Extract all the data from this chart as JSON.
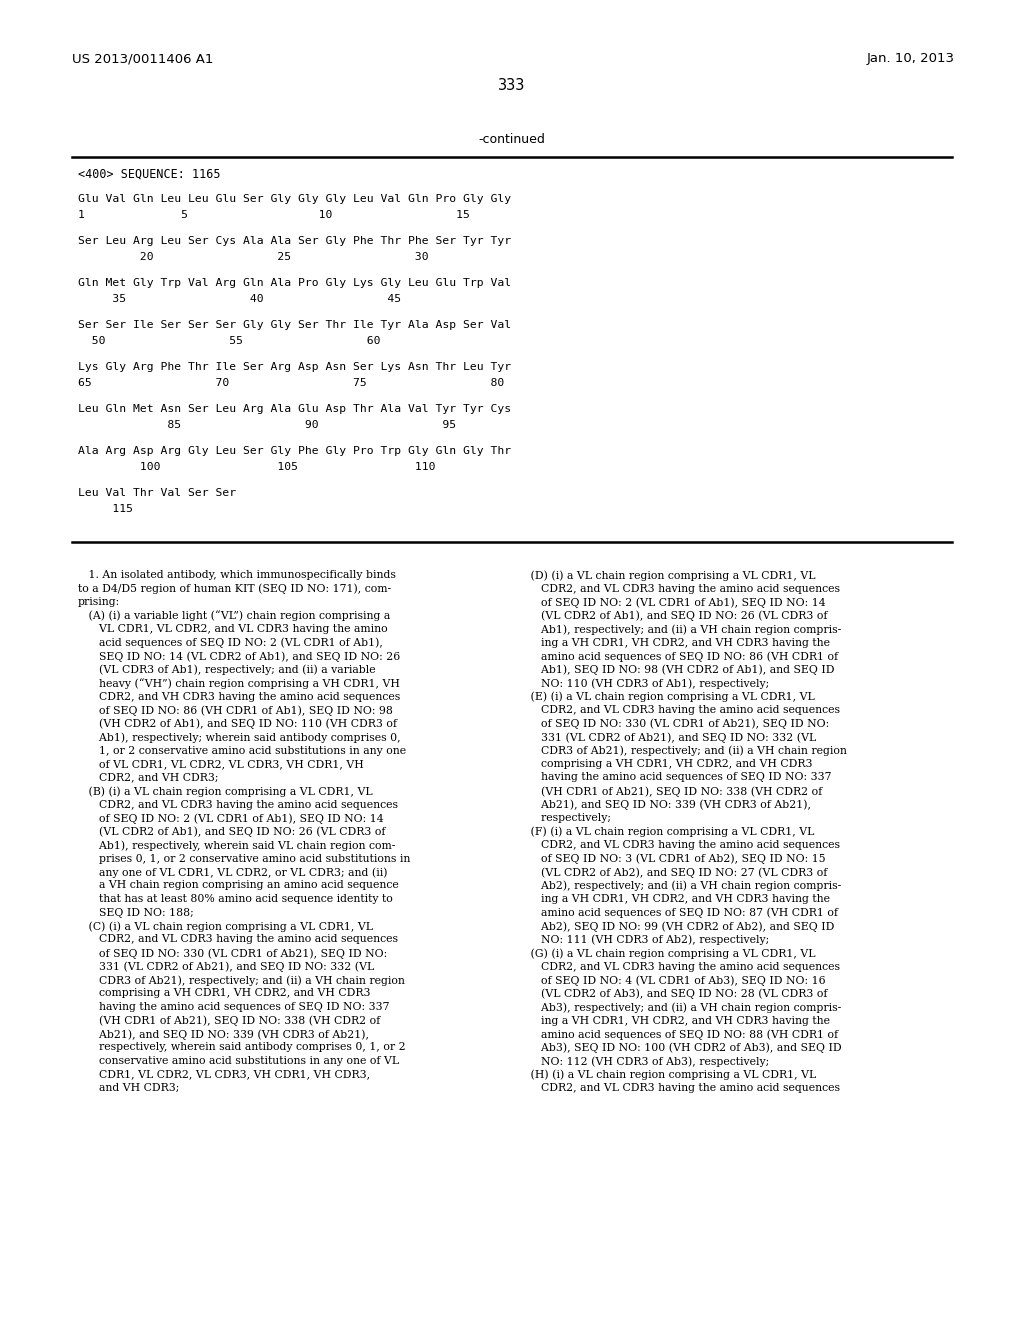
{
  "header_left": "US 2013/0011406 A1",
  "header_right": "Jan. 10, 2013",
  "page_number": "333",
  "continued_label": "-continued",
  "sequence_header": "<400> SEQUENCE: 1165",
  "sequence_lines": [
    [
      "Glu Val Gln Leu Leu Glu Ser Gly Gly Gly Leu Val Gln Pro Gly Gly",
      "1              5                   10                  15"
    ],
    [
      "Ser Leu Arg Leu Ser Cys Ala Ala Ser Gly Phe Thr Phe Ser Tyr Tyr",
      "         20                  25                  30"
    ],
    [
      "Gln Met Gly Trp Val Arg Gln Ala Pro Gly Lys Gly Leu Glu Trp Val",
      "     35                  40                  45"
    ],
    [
      "Ser Ser Ile Ser Ser Ser Gly Gly Ser Thr Ile Tyr Ala Asp Ser Val",
      "  50                  55                  60"
    ],
    [
      "Lys Gly Arg Phe Thr Ile Ser Arg Asp Asn Ser Lys Asn Thr Leu Tyr",
      "65                  70                  75                  80"
    ],
    [
      "Leu Gln Met Asn Ser Leu Arg Ala Glu Asp Thr Ala Val Tyr Tyr Cys",
      "             85                  90                  95"
    ],
    [
      "Ala Arg Asp Arg Gly Leu Ser Gly Phe Gly Pro Trp Gly Gln Gly Thr",
      "         100                 105                 110"
    ],
    [
      "Leu Val Thr Val Ser Ser",
      "     115"
    ]
  ],
  "claim_text_left": [
    "   1. An isolated antibody, which immunospecifically binds",
    "to a D4/D5 region of human KIT (SEQ ID NO: 171), com-",
    "prising:",
    "   (A) (i) a variable light (“VL”) chain region comprising a",
    "      VL CDR1, VL CDR2, and VL CDR3 having the amino",
    "      acid sequences of SEQ ID NO: 2 (VL CDR1 of Ab1),",
    "      SEQ ID NO: 14 (VL CDR2 of Ab1), and SEQ ID NO: 26",
    "      (VL CDR3 of Ab1), respectively; and (ii) a variable",
    "      heavy (“VH”) chain region comprising a VH CDR1, VH",
    "      CDR2, and VH CDR3 having the amino acid sequences",
    "      of SEQ ID NO: 86 (VH CDR1 of Ab1), SEQ ID NO: 98",
    "      (VH CDR2 of Ab1), and SEQ ID NO: 110 (VH CDR3 of",
    "      Ab1), respectively; wherein said antibody comprises 0,",
    "      1, or 2 conservative amino acid substitutions in any one",
    "      of VL CDR1, VL CDR2, VL CDR3, VH CDR1, VH",
    "      CDR2, and VH CDR3;",
    "   (B) (i) a VL chain region comprising a VL CDR1, VL",
    "      CDR2, and VL CDR3 having the amino acid sequences",
    "      of SEQ ID NO: 2 (VL CDR1 of Ab1), SEQ ID NO: 14",
    "      (VL CDR2 of Ab1), and SEQ ID NO: 26 (VL CDR3 of",
    "      Ab1), respectively, wherein said VL chain region com-",
    "      prises 0, 1, or 2 conservative amino acid substitutions in",
    "      any one of VL CDR1, VL CDR2, or VL CDR3; and (ii)",
    "      a VH chain region comprising an amino acid sequence",
    "      that has at least 80% amino acid sequence identity to",
    "      SEQ ID NO: 188;",
    "   (C) (i) a VL chain region comprising a VL CDR1, VL",
    "      CDR2, and VL CDR3 having the amino acid sequences",
    "      of SEQ ID NO: 330 (VL CDR1 of Ab21), SEQ ID NO:",
    "      331 (VL CDR2 of Ab21), and SEQ ID NO: 332 (VL",
    "      CDR3 of Ab21), respectively; and (ii) a VH chain region",
    "      comprising a VH CDR1, VH CDR2, and VH CDR3",
    "      having the amino acid sequences of SEQ ID NO: 337",
    "      (VH CDR1 of Ab21), SEQ ID NO: 338 (VH CDR2 of",
    "      Ab21), and SEQ ID NO: 339 (VH CDR3 of Ab21),",
    "      respectively, wherein said antibody comprises 0, 1, or 2",
    "      conservative amino acid substitutions in any one of VL",
    "      CDR1, VL CDR2, VL CDR3, VH CDR1, VH CDR3,",
    "      and VH CDR3;"
  ],
  "claim_text_right": [
    "   (D) (i) a VL chain region comprising a VL CDR1, VL",
    "      CDR2, and VL CDR3 having the amino acid sequences",
    "      of SEQ ID NO: 2 (VL CDR1 of Ab1), SEQ ID NO: 14",
    "      (VL CDR2 of Ab1), and SEQ ID NO: 26 (VL CDR3 of",
    "      Ab1), respectively; and (ii) a VH chain region compris-",
    "      ing a VH CDR1, VH CDR2, and VH CDR3 having the",
    "      amino acid sequences of SEQ ID NO: 86 (VH CDR1 of",
    "      Ab1), SEQ ID NO: 98 (VH CDR2 of Ab1), and SEQ ID",
    "      NO: 110 (VH CDR3 of Ab1), respectively;",
    "   (E) (i) a VL chain region comprising a VL CDR1, VL",
    "      CDR2, and VL CDR3 having the amino acid sequences",
    "      of SEQ ID NO: 330 (VL CDR1 of Ab21), SEQ ID NO:",
    "      331 (VL CDR2 of Ab21), and SEQ ID NO: 332 (VL",
    "      CDR3 of Ab21), respectively; and (ii) a VH chain region",
    "      comprising a VH CDR1, VH CDR2, and VH CDR3",
    "      having the amino acid sequences of SEQ ID NO: 337",
    "      (VH CDR1 of Ab21), SEQ ID NO: 338 (VH CDR2 of",
    "      Ab21), and SEQ ID NO: 339 (VH CDR3 of Ab21),",
    "      respectively;",
    "   (F) (i) a VL chain region comprising a VL CDR1, VL",
    "      CDR2, and VL CDR3 having the amino acid sequences",
    "      of SEQ ID NO: 3 (VL CDR1 of Ab2), SEQ ID NO: 15",
    "      (VL CDR2 of Ab2), and SEQ ID NO: 27 (VL CDR3 of",
    "      Ab2), respectively; and (ii) a VH chain region compris-",
    "      ing a VH CDR1, VH CDR2, and VH CDR3 having the",
    "      amino acid sequences of SEQ ID NO: 87 (VH CDR1 of",
    "      Ab2), SEQ ID NO: 99 (VH CDR2 of Ab2), and SEQ ID",
    "      NO: 111 (VH CDR3 of Ab2), respectively;",
    "   (G) (i) a VL chain region comprising a VL CDR1, VL",
    "      CDR2, and VL CDR3 having the amino acid sequences",
    "      of SEQ ID NO: 4 (VL CDR1 of Ab3), SEQ ID NO: 16",
    "      (VL CDR2 of Ab3), and SEQ ID NO: 28 (VL CDR3 of",
    "      Ab3), respectively; and (ii) a VH chain region compris-",
    "      ing a VH CDR1, VH CDR2, and VH CDR3 having the",
    "      amino acid sequences of SEQ ID NO: 88 (VH CDR1 of",
    "      Ab3), SEQ ID NO: 100 (VH CDR2 of Ab3), and SEQ ID",
    "      NO: 112 (VH CDR3 of Ab3), respectively;",
    "   (H) (i) a VL chain region comprising a VL CDR1, VL",
    "      CDR2, and VL CDR3 having the amino acid sequences"
  ],
  "bg_color": "#ffffff",
  "text_color": "#000000"
}
